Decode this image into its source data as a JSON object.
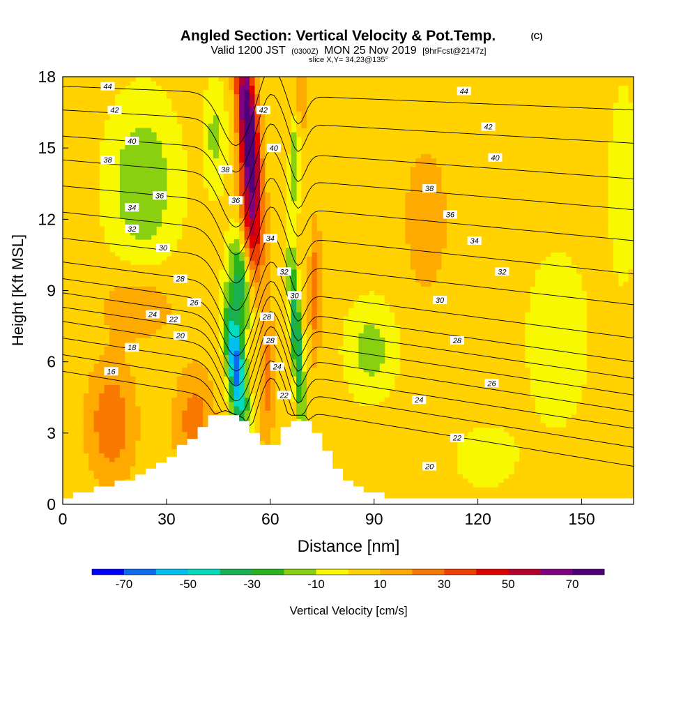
{
  "header": {
    "title": "Angled Section: Vertical Velocity & Pot.Temp.",
    "title_note": "(C)",
    "valid_prefix": "Valid 1200 JST",
    "valid_utc": "(0300Z)",
    "valid_date": "MON 25 Nov 2019",
    "forecast": "[9hrFcst@2147z]",
    "slice": "slice X,Y= 34,23@135°"
  },
  "chart_data": {
    "type": "heatmap",
    "title": "Angled Section: Vertical Velocity & Pot.Temp.",
    "xlabel": "Distance [nm]",
    "ylabel": "Height [Kft MSL]",
    "xlim": [
      0,
      165
    ],
    "ylim": [
      0,
      18
    ],
    "x_ticks": [
      "0",
      "30",
      "60",
      "90",
      "120",
      "150"
    ],
    "y_ticks": [
      "0",
      "3",
      "6",
      "9",
      "12",
      "15",
      "18"
    ],
    "grid": false,
    "colorbar": {
      "label": "Vertical Velocity [cm/s]",
      "placement": "bottom",
      "bins": [
        -80,
        -70,
        -60,
        -50,
        -40,
        -30,
        -20,
        -10,
        0,
        10,
        20,
        30,
        40,
        50,
        60,
        70,
        80
      ],
      "tick_labels": [
        "-70",
        "-50",
        "-30",
        "-10",
        "10",
        "30",
        "50",
        "70"
      ],
      "tick_values": [
        -70,
        -50,
        -30,
        -10,
        10,
        30,
        50,
        70
      ],
      "colors": [
        "#0000ff",
        "#0a6cf0",
        "#00c0f0",
        "#00dcc0",
        "#18b050",
        "#28b41e",
        "#88d010",
        "#f8f800",
        "#ffd200",
        "#ffaa00",
        "#f87800",
        "#f04000",
        "#e00000",
        "#b8002c",
        "#800080",
        "#500078"
      ]
    },
    "terrain": [
      [
        0,
        0.3
      ],
      [
        10,
        0.6
      ],
      [
        18,
        1.0
      ],
      [
        30,
        1.9
      ],
      [
        36,
        2.6
      ],
      [
        40,
        3.2
      ],
      [
        43,
        3.6
      ],
      [
        47,
        3.8
      ],
      [
        52,
        3.5
      ],
      [
        56,
        2.8
      ],
      [
        60,
        2.3
      ],
      [
        63,
        2.8
      ],
      [
        66,
        3.6
      ],
      [
        70,
        3.6
      ],
      [
        73,
        3.0
      ],
      [
        77,
        2.0
      ],
      [
        82,
        1.0
      ],
      [
        86,
        0.6
      ],
      [
        90,
        0.4
      ],
      [
        100,
        0.3
      ],
      [
        165,
        0.3
      ]
    ],
    "velocity_field": [
      {
        "region": "updraft core",
        "x": [
          40,
          52
        ],
        "y": [
          9,
          18
        ],
        "max": 70
      },
      {
        "region": "downslope downdraft",
        "x": [
          44,
          58
        ],
        "y": [
          3,
          11
        ],
        "min": -70
      },
      {
        "region": "lee downdraft",
        "x": [
          63,
          75
        ],
        "y": [
          3,
          12
        ],
        "min": -50
      },
      {
        "region": "upper downdraft",
        "x": [
          8,
          38
        ],
        "y": [
          9,
          18
        ],
        "min": -20
      },
      {
        "region": "downstream downdraft",
        "x": [
          78,
          100
        ],
        "y": [
          4,
          8
        ],
        "min": -20
      },
      {
        "region": "far downdraft",
        "x": [
          135,
          160
        ],
        "y": [
          2,
          12
        ],
        "min": -15
      },
      {
        "region": "low-level updraft",
        "x": [
          0,
          35
        ],
        "y": [
          1,
          6
        ],
        "max": 30
      }
    ],
    "isentropes": [
      {
        "theta": 16,
        "y_west": 5.6,
        "y_east": 1.6
      },
      {
        "theta": 18,
        "y_west": 6.3,
        "y_east": 2.4
      },
      {
        "theta": 20,
        "y_west": 7.0,
        "y_east": 3.2
      },
      {
        "theta": 22,
        "y_west": 7.7,
        "y_east": 3.9
      },
      {
        "theta": 24,
        "y_west": 8.3,
        "y_east": 4.6
      },
      {
        "theta": 26,
        "y_west": 8.9,
        "y_east": 5.3
      },
      {
        "theta": 28,
        "y_west": 9.5,
        "y_east": 6.0
      },
      {
        "theta": 30,
        "y_west": 10.2,
        "y_east": 7.0
      },
      {
        "theta": 32,
        "y_west": 11.2,
        "y_east": 8.4
      },
      {
        "theta": 34,
        "y_west": 12.3,
        "y_east": 9.7
      },
      {
        "theta": 36,
        "y_west": 13.4,
        "y_east": 11.1
      },
      {
        "theta": 38,
        "y_west": 14.5,
        "y_east": 12.4
      },
      {
        "theta": 40,
        "y_west": 15.5,
        "y_east": 13.7
      },
      {
        "theta": 42,
        "y_west": 16.6,
        "y_east": 15.2
      },
      {
        "theta": 44,
        "y_west": 17.6,
        "y_east": 16.6
      }
    ],
    "isentrope_labels": [
      {
        "text": "44",
        "x": 13,
        "y": 17.6
      },
      {
        "text": "42",
        "x": 15,
        "y": 16.6
      },
      {
        "text": "40",
        "x": 20,
        "y": 15.3
      },
      {
        "text": "38",
        "x": 13,
        "y": 14.5
      },
      {
        "text": "36",
        "x": 28,
        "y": 13.0
      },
      {
        "text": "34",
        "x": 20,
        "y": 12.5
      },
      {
        "text": "32",
        "x": 20,
        "y": 11.6
      },
      {
        "text": "30",
        "x": 29,
        "y": 10.8
      },
      {
        "text": "28",
        "x": 34,
        "y": 9.5
      },
      {
        "text": "26",
        "x": 38,
        "y": 8.5
      },
      {
        "text": "24",
        "x": 26,
        "y": 8.0
      },
      {
        "text": "22",
        "x": 32,
        "y": 7.8
      },
      {
        "text": "20",
        "x": 34,
        "y": 7.1
      },
      {
        "text": "18",
        "x": 20,
        "y": 6.6
      },
      {
        "text": "16",
        "x": 14,
        "y": 5.6
      },
      {
        "text": "38",
        "x": 47,
        "y": 14.1
      },
      {
        "text": "36",
        "x": 50,
        "y": 12.8
      },
      {
        "text": "42",
        "x": 58,
        "y": 16.6
      },
      {
        "text": "40",
        "x": 61,
        "y": 15.0
      },
      {
        "text": "34",
        "x": 60,
        "y": 11.2
      },
      {
        "text": "32",
        "x": 64,
        "y": 9.8
      },
      {
        "text": "30",
        "x": 67,
        "y": 8.8
      },
      {
        "text": "28",
        "x": 59,
        "y": 7.9
      },
      {
        "text": "28",
        "x": 60,
        "y": 6.9
      },
      {
        "text": "24",
        "x": 62,
        "y": 5.8
      },
      {
        "text": "22",
        "x": 64,
        "y": 4.6
      },
      {
        "text": "44",
        "x": 116,
        "y": 17.4
      },
      {
        "text": "42",
        "x": 123,
        "y": 15.9
      },
      {
        "text": "40",
        "x": 125,
        "y": 14.6
      },
      {
        "text": "38",
        "x": 106,
        "y": 13.3
      },
      {
        "text": "36",
        "x": 112,
        "y": 12.2
      },
      {
        "text": "34",
        "x": 119,
        "y": 11.1
      },
      {
        "text": "32",
        "x": 127,
        "y": 9.8
      },
      {
        "text": "30",
        "x": 109,
        "y": 8.6
      },
      {
        "text": "28",
        "x": 114,
        "y": 6.9
      },
      {
        "text": "26",
        "x": 124,
        "y": 5.1
      },
      {
        "text": "24",
        "x": 103,
        "y": 4.4
      },
      {
        "text": "22",
        "x": 114,
        "y": 2.8
      },
      {
        "text": "20",
        "x": 106,
        "y": 1.6
      }
    ]
  }
}
